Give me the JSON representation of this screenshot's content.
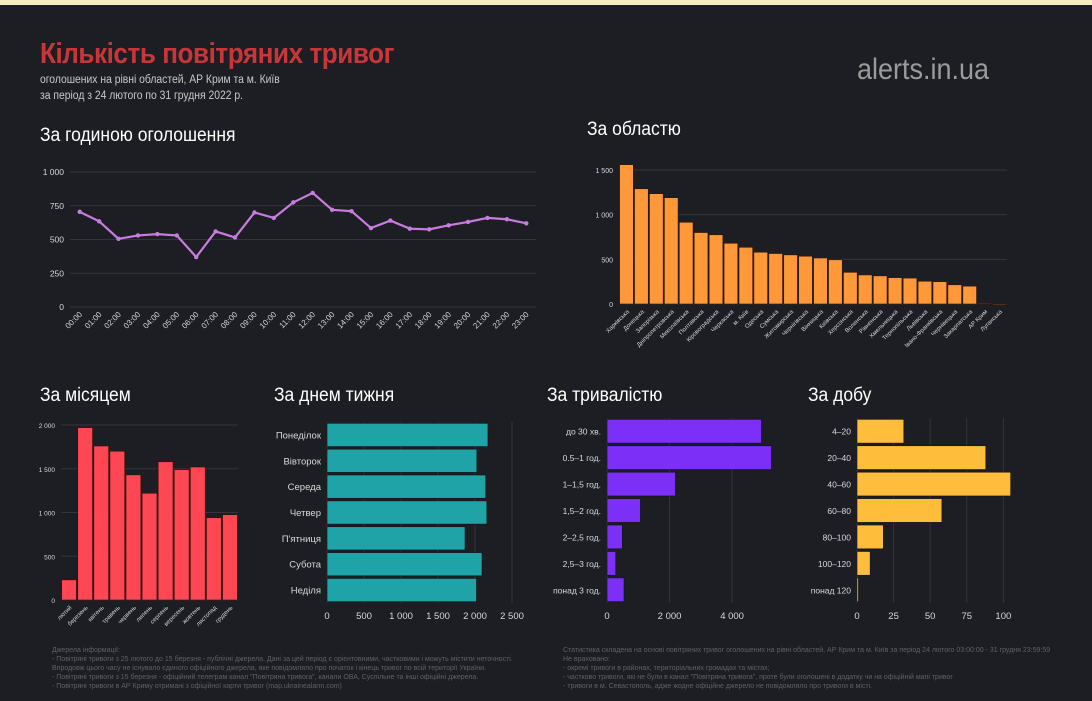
{
  "header": {
    "title": "Кількість повітряних тривог",
    "subtitle_1": "оголошених на рівні областей, АР Крим та м. Київ",
    "subtitle_2": "за період з 24 лютого по 31 грудня 2022 р.",
    "brand": "alerts.in.ua"
  },
  "sections": {
    "hour": "За годиною оголошення",
    "region": "За областю",
    "month": "За місяцем",
    "weekday": "За днем тижня",
    "duration": "За тривалістю",
    "daily": "За добу"
  },
  "colors": {
    "background": "#1d1e23",
    "title": "#c9363a",
    "hour_line": "#c77ddf",
    "region_bars": "#ff9838",
    "month_bars": "#ff4654",
    "weekday_bars": "#1fa3a6",
    "duration_bars": "#7b2ff7",
    "daily_bars": "#ffbd3c"
  },
  "chart_data": [
    {
      "id": "hour",
      "type": "line",
      "categories": [
        "00:00",
        "01:00",
        "02:00",
        "03:00",
        "04:00",
        "05:00",
        "06:00",
        "07:00",
        "08:00",
        "09:00",
        "10:00",
        "11:00",
        "12:00",
        "13:00",
        "14:00",
        "15:00",
        "16:00",
        "17:00",
        "18:00",
        "19:00",
        "20:00",
        "21:00",
        "22:00",
        "23:00"
      ],
      "values": [
        705,
        635,
        505,
        530,
        540,
        530,
        370,
        560,
        515,
        700,
        660,
        775,
        845,
        720,
        710,
        585,
        640,
        580,
        575,
        605,
        630,
        660,
        650,
        620
      ],
      "ylim": [
        0,
        1000
      ],
      "yticks": [
        {
          "v": 0,
          "label": "0"
        },
        {
          "v": 250,
          "label": "250"
        },
        {
          "v": 500,
          "label": "500"
        },
        {
          "v": 750,
          "label": "750"
        },
        {
          "v": 1000,
          "label": "1 000"
        }
      ],
      "grid": true
    },
    {
      "id": "region",
      "type": "bar",
      "categories": [
        "Харківська",
        "Донецька",
        "Запорізька",
        "Дніпропетровська",
        "Миколаївська",
        "Полтавська",
        "Кіровоградська",
        "Черкаська",
        "м. Київ",
        "Одеська",
        "Сумська",
        "Житомирська",
        "Чернігівська",
        "Вінницька",
        "Київська",
        "Херсонська",
        "Волинська",
        "Рівненська",
        "Хмельницька",
        "Тернопільська",
        "Львівська",
        "Івано-Франківська",
        "Чернівецька",
        "Закарпатська",
        "АР Крим",
        "Луганська"
      ],
      "values": [
        1560,
        1290,
        1235,
        1190,
        915,
        800,
        775,
        680,
        635,
        580,
        565,
        550,
        535,
        515,
        495,
        355,
        325,
        315,
        295,
        290,
        255,
        250,
        215,
        200,
        5,
        2
      ],
      "ylim": [
        0,
        1600
      ],
      "yticks": [
        {
          "v": 0,
          "label": "0"
        },
        {
          "v": 500,
          "label": "500"
        },
        {
          "v": 1000,
          "label": "1 000"
        },
        {
          "v": 1500,
          "label": "1 500"
        }
      ],
      "grid": true
    },
    {
      "id": "month",
      "type": "bar",
      "categories": [
        "лютий",
        "березень",
        "квітень",
        "травень",
        "червень",
        "липень",
        "серпень",
        "вересень",
        "жовтень",
        "листопад",
        "грудень"
      ],
      "values": [
        230,
        1970,
        1760,
        1700,
        1430,
        1220,
        1580,
        1490,
        1520,
        940,
        975
      ],
      "ylim": [
        0,
        2000
      ],
      "yticks": [
        {
          "v": 0,
          "label": "0"
        },
        {
          "v": 500,
          "label": "500"
        },
        {
          "v": 1000,
          "label": "1 000"
        },
        {
          "v": 1500,
          "label": "1 500"
        },
        {
          "v": 2000,
          "label": "2 000"
        }
      ],
      "grid": true
    },
    {
      "id": "weekday",
      "type": "bar",
      "orientation": "horizontal",
      "categories": [
        "Понеділок",
        "Вівторок",
        "Середа",
        "Четвер",
        "П'ятниця",
        "Субота",
        "Неділя"
      ],
      "values": [
        2175,
        2025,
        2145,
        2160,
        1865,
        2095,
        2020
      ],
      "xlim": [
        0,
        2500
      ],
      "xticks": [
        {
          "v": 0,
          "label": "0"
        },
        {
          "v": 500,
          "label": "500"
        },
        {
          "v": 1000,
          "label": "1 000"
        },
        {
          "v": 1500,
          "label": "1 500"
        },
        {
          "v": 2000,
          "label": "2 000"
        },
        {
          "v": 2500,
          "label": "2 500"
        }
      ],
      "grid": true
    },
    {
      "id": "duration",
      "type": "bar",
      "orientation": "horizontal",
      "categories": [
        "до 30 хв.",
        "0.5–1 год.",
        "1–1,5 год.",
        "1,5–2 год.",
        "2–2,5 год.",
        "2,5–3 год.",
        "понад 3 год."
      ],
      "values": [
        4940,
        5260,
        2190,
        1070,
        490,
        280,
        545
      ],
      "xlim": [
        0,
        5500
      ],
      "xticks": [
        {
          "v": 0,
          "label": "0"
        },
        {
          "v": 2000,
          "label": "2 000"
        },
        {
          "v": 4000,
          "label": "4 000"
        }
      ],
      "grid": true
    },
    {
      "id": "daily",
      "type": "bar",
      "orientation": "horizontal",
      "categories": [
        "4–20",
        "20–40",
        "40–60",
        "60–80",
        "80–100",
        "100–120",
        "понад 120"
      ],
      "values": [
        32,
        88,
        105,
        58,
        18,
        9,
        1
      ],
      "xlim": [
        0,
        110
      ],
      "xticks": [
        {
          "v": 0,
          "label": "0"
        },
        {
          "v": 25,
          "label": "25"
        },
        {
          "v": 50,
          "label": "50"
        },
        {
          "v": 75,
          "label": "75"
        },
        {
          "v": 100,
          "label": "100"
        }
      ],
      "grid": true
    }
  ],
  "footer": {
    "left": [
      "Джерела інформації:",
      "- Повітряні тривоги з 25 лютого до 15 березня - публічні джерела. Дані за цей період є орієнтовними, частковими і можуть містити неточності.",
      "  Впродовж цього часу не існувало єдиного офіційного джерела, яке повідомляло про початок і кінець тривог по всій території України.",
      "- Повітряні тривоги з 15 березня - офіційний телеграм канал \"Повітряна тривога\", канали ОВА, Суспільне та інші офіційні джерела.",
      "- Повітряні тривоги в АР Криму отримані з офіційної карти тривог (map.ukrainealarm.com)"
    ],
    "right": [
      "Статистика складена на основі повітряних тривог оголошених на рівні областей, АР Крим та м. Київ за період 24 лютого 03:00:00 - 31 грудня 23:59:59",
      "Не враховано:",
      "- окремі тривоги в районах, територіальних громадах та містах;",
      "- частково тривоги, які не були в канал \"Повітряна тривога\", проте були оголошені в додатку чи на офіційній мапі тривог",
      "- тривоги в м. Севастополь, адже жодне офіційне джерело не повідомляло про тривоги в місті."
    ]
  }
}
